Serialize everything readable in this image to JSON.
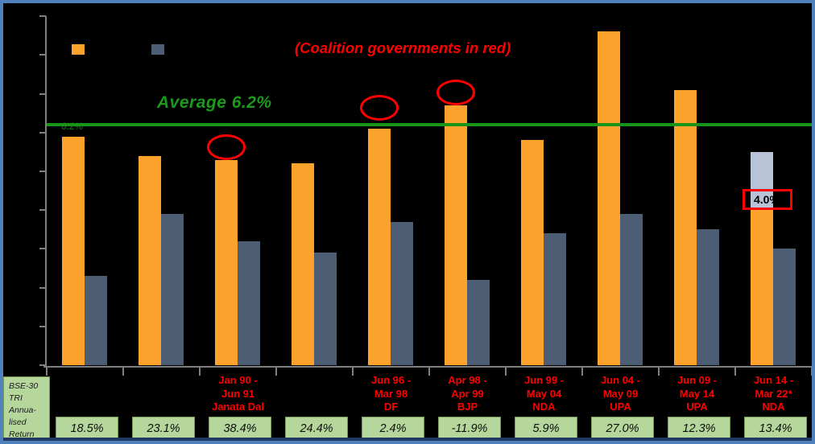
{
  "title": "(Coalition governments in red)",
  "average_label": "Average 6.2%",
  "average_line_label": "6.2%",
  "colors": {
    "frame_border": "#4f81bd",
    "background": "#000000",
    "orange_series": "#fca22d",
    "gray_series": "#4d5d73",
    "silver_extension": "#b9c3d7",
    "average_green": "#189418",
    "annotation_red": "#fe0000",
    "table_green": "#b5d79b",
    "axis_gray": "#7f7f7f",
    "navy_strip": "#1f3864"
  },
  "legend": {
    "swatches": [
      {
        "name": "orange-series",
        "color": "#fca22d"
      },
      {
        "name": "gray-series",
        "color": "#4d5d73"
      }
    ]
  },
  "chart_data": {
    "type": "bar",
    "title": "(Coalition governments in red)",
    "ylabel": "",
    "xlabel": "",
    "ylim": [
      0,
      9
    ],
    "ytick_step": 1,
    "grid": false,
    "legend_position": "top-left",
    "average_line": {
      "value": 6.2,
      "label": "Average 6.2%",
      "color": "#189418"
    },
    "categories": [
      "",
      "",
      "Jan 90 - Jun 91 Janata Dal",
      "",
      "Jun 96 - Mar 98 DF",
      "Apr 98 - Apr 99 BJP",
      "Jun 99 - May 04 NDA",
      "Jun 04 - May 09 UPA",
      "Jun 09 - May 14 UPA",
      "Jun 14 - Mar 22* NDA"
    ],
    "series": [
      {
        "name": "orange",
        "color": "#fca22d",
        "values": [
          5.9,
          5.4,
          5.3,
          5.2,
          6.1,
          6.7,
          5.8,
          8.6,
          7.1,
          4.0
        ]
      },
      {
        "name": "gray",
        "color": "#4d5d73",
        "values": [
          2.3,
          3.9,
          3.2,
          2.9,
          3.7,
          2.2,
          3.4,
          3.9,
          3.5,
          3.0
        ]
      }
    ],
    "stacked_extension": {
      "group_index": 9,
      "from": 4.0,
      "to": 5.5,
      "color": "#b9c3d7"
    },
    "circled_groups": [
      {
        "index": 2,
        "lift": 0
      },
      {
        "index": 4,
        "lift": 10
      },
      {
        "index": 5,
        "lift": 0
      }
    ],
    "callout": {
      "group_index": 9,
      "value": 4.0,
      "label": "4.0%"
    }
  },
  "table": {
    "row_header_lines": [
      "BSE-30",
      "TRI",
      "Annua-",
      "lised",
      "Return"
    ],
    "columns": [
      {
        "period_lines": [],
        "value": "18.5%"
      },
      {
        "period_lines": [],
        "value": "23.1%"
      },
      {
        "period_lines": [
          "Jan 90 -",
          "Jun 91",
          "Janata Dal"
        ],
        "value": "38.4%"
      },
      {
        "period_lines": [],
        "value": "24.4%"
      },
      {
        "period_lines": [
          "Jun 96 -",
          "Mar 98",
          "DF"
        ],
        "value": "2.4%"
      },
      {
        "period_lines": [
          "Apr 98 -",
          "Apr 99",
          "BJP"
        ],
        "value": "-11.9%"
      },
      {
        "period_lines": [
          "Jun 99 -",
          "May 04",
          "NDA"
        ],
        "value": "5.9%"
      },
      {
        "period_lines": [
          "Jun 04 -",
          "May 09",
          "UPA"
        ],
        "value": "27.0%"
      },
      {
        "period_lines": [
          "Jun 09 -",
          "May 14",
          "UPA"
        ],
        "value": "12.3%"
      },
      {
        "period_lines": [
          "Jun 14 -",
          "Mar 22*",
          "NDA"
        ],
        "value": "13.4%"
      }
    ]
  }
}
